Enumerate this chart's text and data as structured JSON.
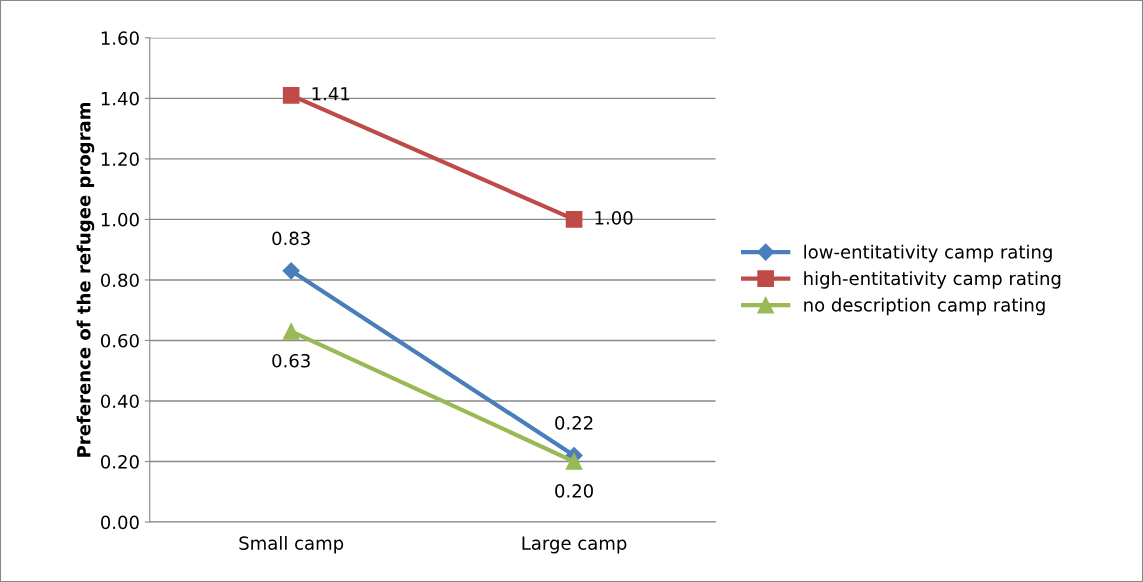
{
  "chart_data": {
    "type": "line",
    "ylabel": "Preference of the refugee program",
    "categories": [
      "Small camp",
      "Large camp"
    ],
    "series": [
      {
        "name": "low-entitativity camp rating",
        "color": "#4a7ebb",
        "marker": "diamond",
        "values": [
          0.83,
          0.22
        ],
        "value_labels": [
          "0.83",
          "0.22"
        ]
      },
      {
        "name": "high-entitativity camp rating",
        "color": "#be4b48",
        "marker": "square",
        "values": [
          1.41,
          1.0
        ],
        "value_labels": [
          "1.41",
          "1.00"
        ]
      },
      {
        "name": "no description camp rating",
        "color": "#98b954",
        "marker": "triangle",
        "values": [
          0.63,
          0.2
        ],
        "value_labels": [
          "0.63",
          "0.20"
        ]
      }
    ],
    "ylim": [
      0,
      1.6
    ],
    "yticks": [
      {
        "value": 0,
        "label": "0.00"
      },
      {
        "value": 0.2,
        "label": "0.20"
      },
      {
        "value": 0.4,
        "label": "0.40"
      },
      {
        "value": 0.6,
        "label": "0.60"
      },
      {
        "value": 0.8,
        "label": "0.80"
      },
      {
        "value": 1.0,
        "label": "1.00"
      },
      {
        "value": 1.2,
        "label": "1.20"
      },
      {
        "value": 1.4,
        "label": "1.40"
      },
      {
        "value": 1.6,
        "label": "1.60"
      }
    ],
    "grid": "y",
    "legend": "right",
    "line_style": "solid"
  }
}
